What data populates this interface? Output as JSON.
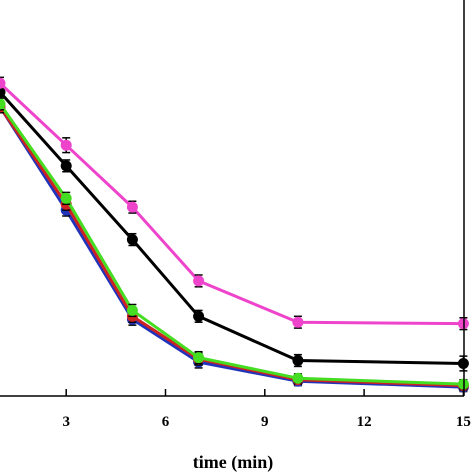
{
  "chart_data": {
    "type": "line",
    "xlabel": "time (min)",
    "ylabel": "",
    "xlim": [
      2,
      16
    ],
    "ylim": [
      0,
      1
    ],
    "x_ticks": [
      3,
      6,
      9,
      12,
      15
    ],
    "x_tick_labels": [
      "3",
      "6",
      "9",
      "12",
      "15"
    ],
    "grid": false,
    "x": [
      1,
      3,
      5,
      7,
      10,
      15
    ],
    "series": [
      {
        "color": "#ee44cc",
        "values": [
          1.05,
          0.84,
          0.63,
          0.38,
          0.24,
          0.235
        ],
        "errors": [
          0.02,
          0.025,
          0.02,
          0.02,
          0.02,
          0.02
        ]
      },
      {
        "color": "#000000",
        "values": [
          1.02,
          0.77,
          0.52,
          0.26,
          0.11,
          0.1
        ],
        "errors": [
          0.02,
          0.02,
          0.02,
          0.02,
          0.02,
          0.025
        ]
      },
      {
        "color": "#2233bb",
        "values": [
          0.97,
          0.62,
          0.25,
          0.105,
          0.04,
          0.02
        ],
        "errors": [
          0.02,
          0.02,
          0.02,
          0.02,
          0.015,
          0.015
        ]
      },
      {
        "color": "#cc2222",
        "values": [
          0.97,
          0.64,
          0.26,
          0.115,
          0.045,
          0.025
        ],
        "errors": [
          0.02,
          0.02,
          0.02,
          0.02,
          0.015,
          0.015
        ]
      },
      {
        "color": "#44dd22",
        "values": [
          0.98,
          0.66,
          0.28,
          0.12,
          0.05,
          0.03
        ],
        "errors": [
          0.02,
          0.02,
          0.02,
          0.02,
          0.015,
          0.015
        ]
      }
    ]
  }
}
